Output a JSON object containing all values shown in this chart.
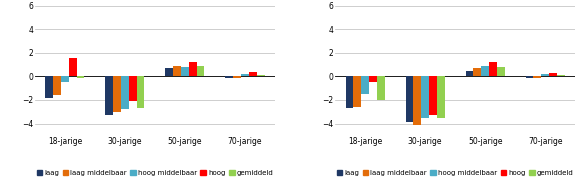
{
  "categories": [
    "18-jarige",
    "30-jarige",
    "50-jarige",
    "70-jarige"
  ],
  "series_labels": [
    "laag",
    "laag middelbaar",
    "hoog middelbaar",
    "hoog",
    "gemiddeld"
  ],
  "colors": [
    "#1f3864",
    "#e36c09",
    "#4bacc6",
    "#ff0000",
    "#92d050"
  ],
  "left_values": [
    [
      -1.8,
      -1.6,
      -0.5,
      1.6,
      -0.1
    ],
    [
      -3.3,
      -3.0,
      -2.8,
      -2.1,
      -2.7
    ],
    [
      0.7,
      0.9,
      0.8,
      1.2,
      0.9
    ],
    [
      -0.1,
      -0.1,
      0.2,
      0.4,
      0.1
    ]
  ],
  "right_values": [
    [
      -2.7,
      -2.6,
      -1.5,
      -0.5,
      -2.0
    ],
    [
      -3.9,
      -4.1,
      -3.5,
      -3.3,
      -3.5
    ],
    [
      0.5,
      0.7,
      0.9,
      1.2,
      0.8
    ],
    [
      -0.1,
      -0.1,
      0.2,
      0.3,
      0.1
    ]
  ],
  "ylim_left": [
    -5,
    6
  ],
  "ylim_right": [
    -5,
    6
  ],
  "yticks_left": [
    -4,
    -2,
    0,
    2,
    4,
    6
  ],
  "yticks_right": [
    -4,
    -2,
    0,
    2,
    4,
    6
  ],
  "bar_width": 0.13,
  "legend_fontsize": 5.0,
  "tick_fontsize": 5.5,
  "background_color": "#ffffff",
  "grid_color": "#bbbbbb"
}
